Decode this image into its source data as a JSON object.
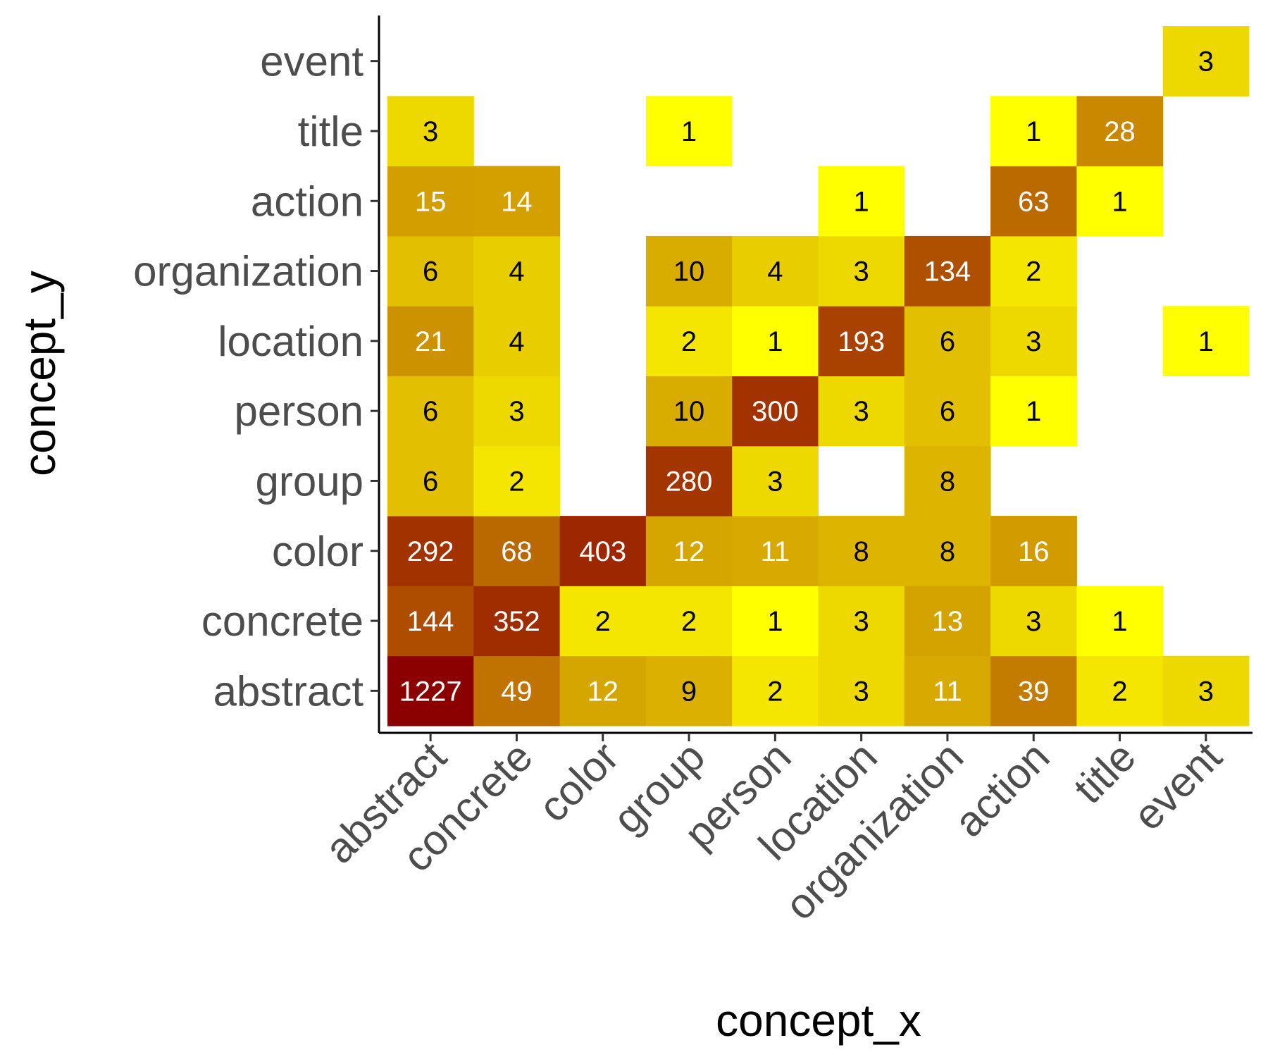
{
  "chart_data": {
    "type": "heatmap",
    "xlabel": "concept_x",
    "ylabel": "concept_y",
    "x_categories": [
      "abstract",
      "concrete",
      "color",
      "group",
      "person",
      "location",
      "organization",
      "action",
      "title",
      "event"
    ],
    "y_categories": [
      "abstract",
      "concrete",
      "color",
      "group",
      "person",
      "location",
      "organization",
      "action",
      "title",
      "event"
    ],
    "cells": [
      {
        "x": "abstract",
        "y": "abstract",
        "value": 1227
      },
      {
        "x": "concrete",
        "y": "abstract",
        "value": 49
      },
      {
        "x": "color",
        "y": "abstract",
        "value": 12
      },
      {
        "x": "group",
        "y": "abstract",
        "value": 9
      },
      {
        "x": "person",
        "y": "abstract",
        "value": 2
      },
      {
        "x": "location",
        "y": "abstract",
        "value": 3
      },
      {
        "x": "organization",
        "y": "abstract",
        "value": 11
      },
      {
        "x": "action",
        "y": "abstract",
        "value": 39
      },
      {
        "x": "title",
        "y": "abstract",
        "value": 2
      },
      {
        "x": "event",
        "y": "abstract",
        "value": 3
      },
      {
        "x": "abstract",
        "y": "concrete",
        "value": 144
      },
      {
        "x": "concrete",
        "y": "concrete",
        "value": 352
      },
      {
        "x": "color",
        "y": "concrete",
        "value": 2
      },
      {
        "x": "group",
        "y": "concrete",
        "value": 2
      },
      {
        "x": "person",
        "y": "concrete",
        "value": 1
      },
      {
        "x": "location",
        "y": "concrete",
        "value": 3
      },
      {
        "x": "organization",
        "y": "concrete",
        "value": 13
      },
      {
        "x": "action",
        "y": "concrete",
        "value": 3
      },
      {
        "x": "title",
        "y": "concrete",
        "value": 1
      },
      {
        "x": "abstract",
        "y": "color",
        "value": 292
      },
      {
        "x": "concrete",
        "y": "color",
        "value": 68
      },
      {
        "x": "color",
        "y": "color",
        "value": 403
      },
      {
        "x": "group",
        "y": "color",
        "value": 12
      },
      {
        "x": "person",
        "y": "color",
        "value": 11
      },
      {
        "x": "location",
        "y": "color",
        "value": 8
      },
      {
        "x": "organization",
        "y": "color",
        "value": 8
      },
      {
        "x": "action",
        "y": "color",
        "value": 16
      },
      {
        "x": "abstract",
        "y": "group",
        "value": 6
      },
      {
        "x": "concrete",
        "y": "group",
        "value": 2
      },
      {
        "x": "group",
        "y": "group",
        "value": 280
      },
      {
        "x": "person",
        "y": "group",
        "value": 3
      },
      {
        "x": "organization",
        "y": "group",
        "value": 8
      },
      {
        "x": "abstract",
        "y": "person",
        "value": 6
      },
      {
        "x": "concrete",
        "y": "person",
        "value": 3
      },
      {
        "x": "group",
        "y": "person",
        "value": 10
      },
      {
        "x": "person",
        "y": "person",
        "value": 300
      },
      {
        "x": "location",
        "y": "person",
        "value": 3
      },
      {
        "x": "organization",
        "y": "person",
        "value": 6
      },
      {
        "x": "action",
        "y": "person",
        "value": 1
      },
      {
        "x": "abstract",
        "y": "location",
        "value": 21
      },
      {
        "x": "concrete",
        "y": "location",
        "value": 4
      },
      {
        "x": "group",
        "y": "location",
        "value": 2
      },
      {
        "x": "person",
        "y": "location",
        "value": 1
      },
      {
        "x": "location",
        "y": "location",
        "value": 193
      },
      {
        "x": "organization",
        "y": "location",
        "value": 6
      },
      {
        "x": "action",
        "y": "location",
        "value": 3
      },
      {
        "x": "event",
        "y": "location",
        "value": 1
      },
      {
        "x": "abstract",
        "y": "organization",
        "value": 6
      },
      {
        "x": "concrete",
        "y": "organization",
        "value": 4
      },
      {
        "x": "group",
        "y": "organization",
        "value": 10
      },
      {
        "x": "person",
        "y": "organization",
        "value": 4
      },
      {
        "x": "location",
        "y": "organization",
        "value": 3
      },
      {
        "x": "organization",
        "y": "organization",
        "value": 134
      },
      {
        "x": "action",
        "y": "organization",
        "value": 2
      },
      {
        "x": "abstract",
        "y": "action",
        "value": 15
      },
      {
        "x": "concrete",
        "y": "action",
        "value": 14
      },
      {
        "x": "location",
        "y": "action",
        "value": 1
      },
      {
        "x": "action",
        "y": "action",
        "value": 63
      },
      {
        "x": "title",
        "y": "action",
        "value": 1
      },
      {
        "x": "abstract",
        "y": "title",
        "value": 3
      },
      {
        "x": "group",
        "y": "title",
        "value": 1
      },
      {
        "x": "action",
        "y": "title",
        "value": 1
      },
      {
        "x": "title",
        "y": "title",
        "value": 28
      },
      {
        "x": "event",
        "y": "event",
        "value": 3
      }
    ],
    "color_scale": {
      "low": "#ffff00",
      "high": "#8b0000",
      "transform": "log"
    },
    "label_colors": {
      "dark": "#000000",
      "light": "#ffffff"
    },
    "grid": false,
    "legend": "none"
  }
}
